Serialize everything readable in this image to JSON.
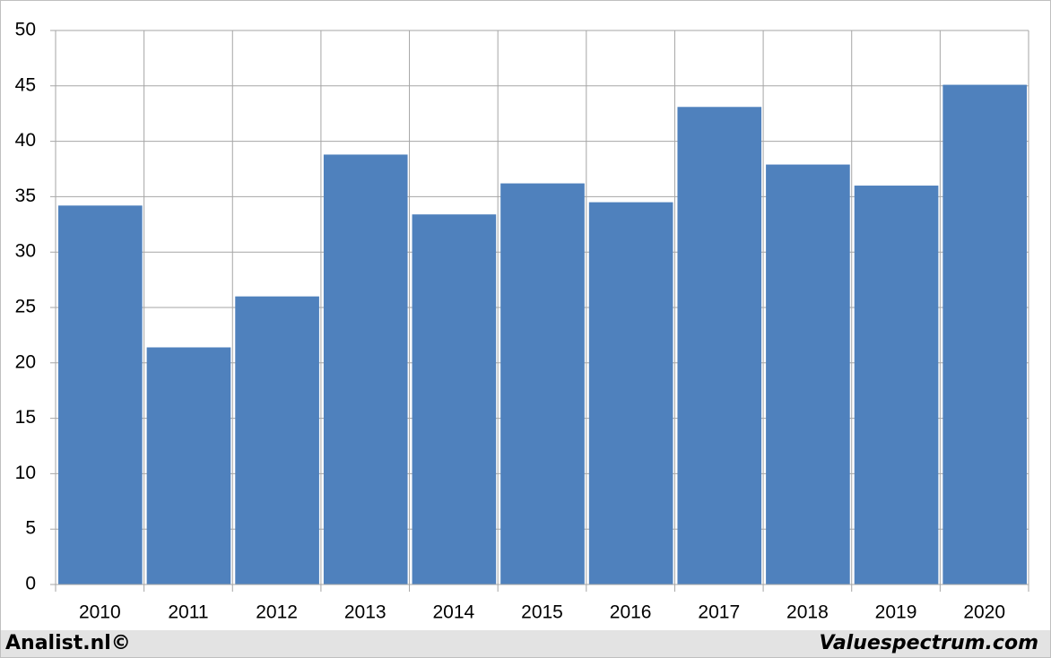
{
  "chart_data": {
    "type": "bar",
    "categories": [
      "2010",
      "2011",
      "2012",
      "2013",
      "2014",
      "2015",
      "2016",
      "2017",
      "2018",
      "2019",
      "2020"
    ],
    "values": [
      34.2,
      21.4,
      26.0,
      38.8,
      33.4,
      36.2,
      34.5,
      43.1,
      37.9,
      36.0,
      45.1
    ],
    "color": "#4f81bd",
    "ylim": [
      0,
      50
    ],
    "yticks": [
      0,
      5,
      10,
      15,
      20,
      25,
      30,
      35,
      40,
      45,
      50
    ],
    "grid": true,
    "credit_left": "Analist.nl©",
    "credit_right": "Valuespectrum.com"
  }
}
